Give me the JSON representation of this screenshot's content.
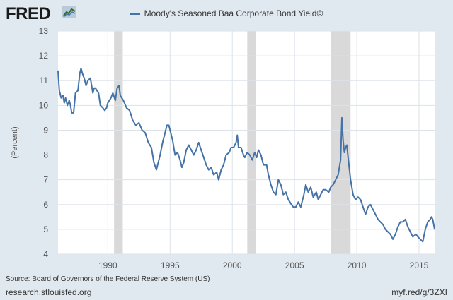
{
  "brand": {
    "logo_text": "FRED",
    "icon": "fred-chart-logo-icon"
  },
  "footer": {
    "source": "Source: Board of Governors of the Federal Reserve System (US)",
    "site": "research.stlouisfed.org",
    "short_link": "myf.red/g/3ZXI"
  },
  "colors": {
    "series": "#4572a7",
    "recession": "#d9d9d9",
    "grid": "#dde3ea",
    "plot_bg": "#ffffff",
    "page_bg": "#e1e9f0"
  },
  "chart_data": {
    "type": "line",
    "title": "",
    "xlabel": "",
    "ylabel": "(Percent)",
    "xlim": [
      1986.0,
      2016.25
    ],
    "ylim": [
      4,
      13
    ],
    "x_ticks": [
      1990,
      1995,
      2000,
      2005,
      2010,
      2015
    ],
    "y_ticks": [
      4,
      5,
      6,
      7,
      8,
      9,
      10,
      11,
      12,
      13
    ],
    "grid": true,
    "legend_position": "top-center",
    "recessions": [
      [
        1990.5,
        1991.2
      ],
      [
        2001.2,
        2001.9
      ],
      [
        2007.9,
        2009.5
      ]
    ],
    "series": [
      {
        "name": "Moody's Seasoned Baa Corporate Bond Yield©",
        "color": "#4572a7",
        "points": [
          [
            1986.0,
            11.4
          ],
          [
            1986.1,
            10.6
          ],
          [
            1986.25,
            10.3
          ],
          [
            1986.4,
            10.4
          ],
          [
            1986.5,
            10.1
          ],
          [
            1986.6,
            10.3
          ],
          [
            1986.75,
            10.0
          ],
          [
            1986.9,
            10.2
          ],
          [
            1987.0,
            10.0
          ],
          [
            1987.1,
            9.7
          ],
          [
            1987.25,
            9.7
          ],
          [
            1987.4,
            10.5
          ],
          [
            1987.6,
            10.6
          ],
          [
            1987.75,
            11.3
          ],
          [
            1987.85,
            11.5
          ],
          [
            1987.95,
            11.3
          ],
          [
            1988.1,
            11.1
          ],
          [
            1988.25,
            10.8
          ],
          [
            1988.4,
            11.0
          ],
          [
            1988.6,
            11.1
          ],
          [
            1988.8,
            10.5
          ],
          [
            1988.9,
            10.7
          ],
          [
            1989.0,
            10.7
          ],
          [
            1989.25,
            10.5
          ],
          [
            1989.4,
            10.0
          ],
          [
            1989.6,
            9.9
          ],
          [
            1989.75,
            9.8
          ],
          [
            1989.9,
            9.9
          ],
          [
            1990.0,
            10.1
          ],
          [
            1990.25,
            10.3
          ],
          [
            1990.4,
            10.5
          ],
          [
            1990.6,
            10.2
          ],
          [
            1990.75,
            10.7
          ],
          [
            1990.9,
            10.8
          ],
          [
            1991.0,
            10.4
          ],
          [
            1991.25,
            10.2
          ],
          [
            1991.5,
            9.9
          ],
          [
            1991.75,
            9.8
          ],
          [
            1992.0,
            9.4
          ],
          [
            1992.25,
            9.2
          ],
          [
            1992.5,
            9.3
          ],
          [
            1992.75,
            9.0
          ],
          [
            1993.0,
            8.9
          ],
          [
            1993.25,
            8.5
          ],
          [
            1993.5,
            8.3
          ],
          [
            1993.7,
            7.7
          ],
          [
            1993.9,
            7.4
          ],
          [
            1994.0,
            7.6
          ],
          [
            1994.2,
            8.0
          ],
          [
            1994.4,
            8.5
          ],
          [
            1994.6,
            8.9
          ],
          [
            1994.75,
            9.2
          ],
          [
            1994.9,
            9.2
          ],
          [
            1995.0,
            9.0
          ],
          [
            1995.2,
            8.6
          ],
          [
            1995.4,
            8.0
          ],
          [
            1995.6,
            8.1
          ],
          [
            1995.8,
            7.8
          ],
          [
            1995.95,
            7.5
          ],
          [
            1996.1,
            7.7
          ],
          [
            1996.3,
            8.2
          ],
          [
            1996.5,
            8.4
          ],
          [
            1996.7,
            8.2
          ],
          [
            1996.9,
            8.0
          ],
          [
            1997.1,
            8.2
          ],
          [
            1997.3,
            8.5
          ],
          [
            1997.5,
            8.2
          ],
          [
            1997.7,
            7.9
          ],
          [
            1997.9,
            7.6
          ],
          [
            1998.1,
            7.4
          ],
          [
            1998.3,
            7.5
          ],
          [
            1998.5,
            7.2
          ],
          [
            1998.75,
            7.3
          ],
          [
            1998.9,
            7.0
          ],
          [
            1999.1,
            7.4
          ],
          [
            1999.3,
            7.6
          ],
          [
            1999.5,
            8.0
          ],
          [
            1999.75,
            8.1
          ],
          [
            1999.9,
            8.3
          ],
          [
            2000.1,
            8.3
          ],
          [
            2000.3,
            8.5
          ],
          [
            2000.4,
            8.8
          ],
          [
            2000.5,
            8.3
          ],
          [
            2000.7,
            8.3
          ],
          [
            2000.9,
            8.0
          ],
          [
            2001.0,
            7.9
          ],
          [
            2001.2,
            8.1
          ],
          [
            2001.4,
            8.0
          ],
          [
            2001.6,
            7.8
          ],
          [
            2001.8,
            8.1
          ],
          [
            2001.95,
            7.9
          ],
          [
            2002.1,
            8.2
          ],
          [
            2002.3,
            8.0
          ],
          [
            2002.5,
            7.6
          ],
          [
            2002.75,
            7.6
          ],
          [
            2002.9,
            7.2
          ],
          [
            2003.1,
            6.8
          ],
          [
            2003.3,
            6.5
          ],
          [
            2003.5,
            6.4
          ],
          [
            2003.7,
            7.0
          ],
          [
            2003.9,
            6.8
          ],
          [
            2004.1,
            6.4
          ],
          [
            2004.3,
            6.5
          ],
          [
            2004.5,
            6.2
          ],
          [
            2004.75,
            6.0
          ],
          [
            2004.9,
            5.9
          ],
          [
            2005.1,
            5.9
          ],
          [
            2005.3,
            6.1
          ],
          [
            2005.5,
            5.9
          ],
          [
            2005.75,
            6.4
          ],
          [
            2005.9,
            6.8
          ],
          [
            2006.1,
            6.5
          ],
          [
            2006.3,
            6.7
          ],
          [
            2006.5,
            6.3
          ],
          [
            2006.75,
            6.5
          ],
          [
            2006.9,
            6.2
          ],
          [
            2007.1,
            6.4
          ],
          [
            2007.3,
            6.6
          ],
          [
            2007.5,
            6.6
          ],
          [
            2007.75,
            6.5
          ],
          [
            2007.9,
            6.7
          ],
          [
            2008.1,
            6.8
          ],
          [
            2008.3,
            7.0
          ],
          [
            2008.5,
            7.2
          ],
          [
            2008.7,
            7.8
          ],
          [
            2008.8,
            9.5
          ],
          [
            2008.9,
            8.6
          ],
          [
            2009.0,
            8.1
          ],
          [
            2009.1,
            8.3
          ],
          [
            2009.2,
            8.4
          ],
          [
            2009.3,
            7.9
          ],
          [
            2009.5,
            7.0
          ],
          [
            2009.7,
            6.4
          ],
          [
            2009.9,
            6.2
          ],
          [
            2010.1,
            6.3
          ],
          [
            2010.3,
            6.2
          ],
          [
            2010.5,
            5.9
          ],
          [
            2010.7,
            5.6
          ],
          [
            2010.9,
            5.9
          ],
          [
            2011.1,
            6.0
          ],
          [
            2011.3,
            5.8
          ],
          [
            2011.5,
            5.6
          ],
          [
            2011.7,
            5.4
          ],
          [
            2011.9,
            5.3
          ],
          [
            2012.1,
            5.2
          ],
          [
            2012.3,
            5.0
          ],
          [
            2012.5,
            4.9
          ],
          [
            2012.7,
            4.8
          ],
          [
            2012.9,
            4.6
          ],
          [
            2013.1,
            4.8
          ],
          [
            2013.3,
            5.1
          ],
          [
            2013.5,
            5.3
          ],
          [
            2013.7,
            5.3
          ],
          [
            2013.9,
            5.4
          ],
          [
            2014.1,
            5.1
          ],
          [
            2014.3,
            4.9
          ],
          [
            2014.5,
            4.7
          ],
          [
            2014.75,
            4.8
          ],
          [
            2014.9,
            4.7
          ],
          [
            2015.1,
            4.6
          ],
          [
            2015.3,
            4.5
          ],
          [
            2015.5,
            5.0
          ],
          [
            2015.7,
            5.3
          ],
          [
            2015.9,
            5.4
          ],
          [
            2016.0,
            5.5
          ],
          [
            2016.1,
            5.4
          ],
          [
            2016.25,
            5.0
          ]
        ]
      }
    ]
  }
}
